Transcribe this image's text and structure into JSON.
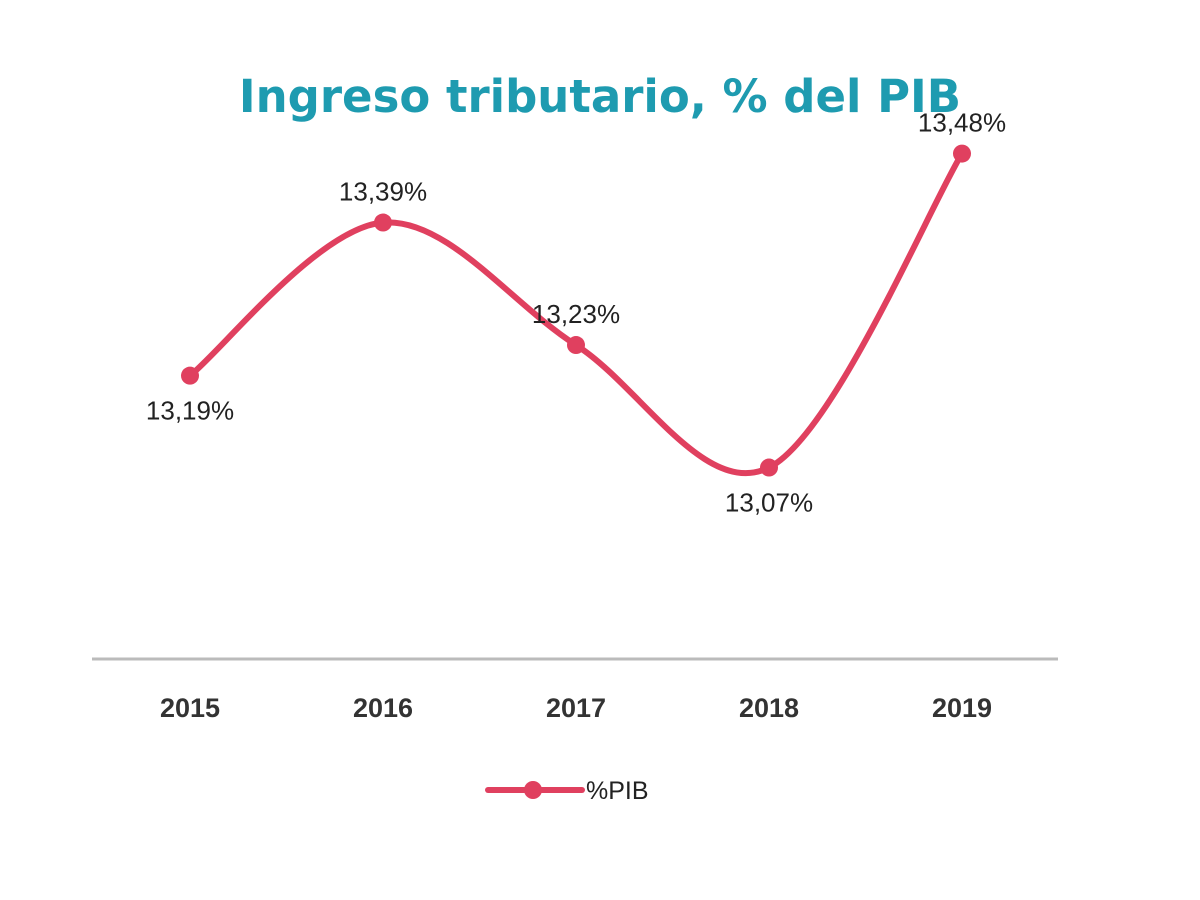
{
  "chart_data": {
    "type": "line",
    "title": "Ingreso tributario, % del PIB",
    "categories": [
      "2015",
      "2016",
      "2017",
      "2018",
      "2019"
    ],
    "series": [
      {
        "name": "%PIB",
        "values": [
          13.19,
          13.39,
          13.23,
          13.07,
          13.48
        ],
        "labels": [
          "13,19%",
          "13,39%",
          "13,23%",
          "13,07%",
          "13,48%"
        ],
        "color": "#e0405f"
      }
    ],
    "ylim": [
      12.82,
      13.55
    ],
    "smooth": true,
    "grid": false,
    "legend": "bottom",
    "axis_color": "#bbbbbb",
    "title_color": "#1e9bb0"
  }
}
